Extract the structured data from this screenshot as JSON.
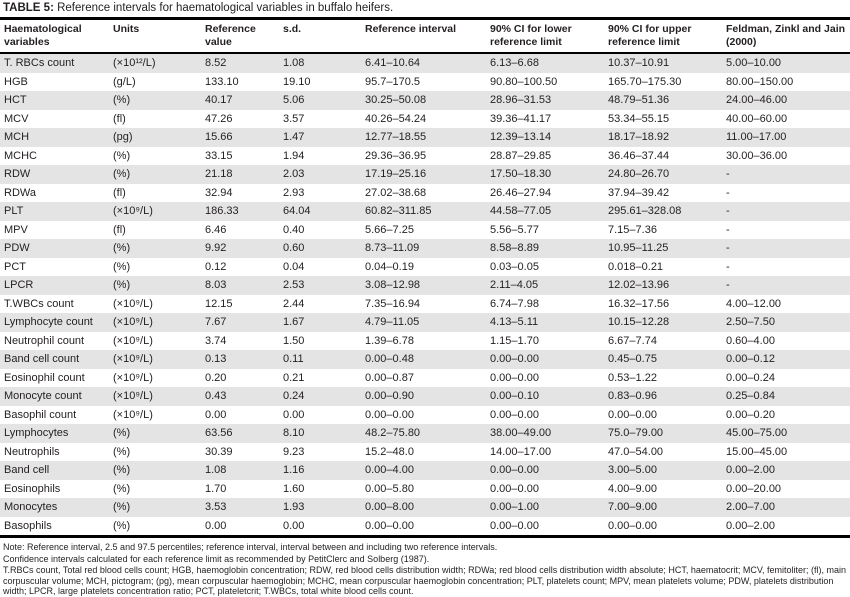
{
  "title": {
    "label": "TABLE 5:",
    "text": "Reference intervals for haematological variables in buffalo heifers."
  },
  "columns": [
    "Haematological variables",
    "Units",
    "Reference value",
    "s.d.",
    "Reference interval",
    "90% CI for lower reference limit",
    "90% CI for upper reference limit",
    "Feldman, Zinkl and Jain (2000)"
  ],
  "rows": [
    [
      "T. RBCs count",
      "(×10¹²/L)",
      "8.52",
      "1.08",
      "6.41–10.64",
      "6.13–6.68",
      "10.37–10.91",
      "5.00–10.00"
    ],
    [
      "HGB",
      "(g/L)",
      "133.10",
      "19.10",
      "95.7–170.5",
      "90.80–100.50",
      "165.70–175.30",
      "80.00–150.00"
    ],
    [
      "HCT",
      "(%)",
      "40.17",
      "5.06",
      "30.25–50.08",
      "28.96–31.53",
      "48.79–51.36",
      "24.00–46.00"
    ],
    [
      "MCV",
      "(fl)",
      "47.26",
      "3.57",
      "40.26–54.24",
      "39.36–41.17",
      "53.34–55.15",
      "40.00–60.00"
    ],
    [
      "MCH",
      "(pg)",
      "15.66",
      "1.47",
      "12.77–18.55",
      "12.39–13.14",
      "18.17–18.92",
      "11.00–17.00"
    ],
    [
      "MCHC",
      "(%)",
      "33.15",
      "1.94",
      "29.36–36.95",
      "28.87–29.85",
      "36.46–37.44",
      "30.00–36.00"
    ],
    [
      "RDW",
      "(%)",
      "21.18",
      "2.03",
      "17.19–25.16",
      "17.50–18.30",
      "24.80–26.70",
      "-"
    ],
    [
      "RDWa",
      "(fl)",
      "32.94",
      "2.93",
      "27.02–38.68",
      "26.46–27.94",
      "37.94–39.42",
      "-"
    ],
    [
      "PLT",
      "(×10⁹/L)",
      "186.33",
      "64.04",
      "60.82–311.85",
      "44.58–77.05",
      "295.61–328.08",
      "-"
    ],
    [
      "MPV",
      "(fl)",
      "6.46",
      "0.40",
      "5.66–7.25",
      "5.56–5.77",
      "7.15–7.36",
      "-"
    ],
    [
      "PDW",
      "(%)",
      "9.92",
      "0.60",
      "8.73–11.09",
      "8.58–8.89",
      "10.95–11.25",
      "-"
    ],
    [
      "PCT",
      "(%)",
      "0.12",
      "0.04",
      "0.04–0.19",
      "0.03–0.05",
      "0.018–0.21",
      "-"
    ],
    [
      "LPCR",
      "(%)",
      "8.03",
      "2.53",
      "3.08–12.98",
      "2.11–4.05",
      "12.02–13.96",
      "-"
    ],
    [
      "T.WBCs count",
      "(×10⁹/L)",
      "12.15",
      "2.44",
      "7.35–16.94",
      "6.74–7.98",
      "16.32–17.56",
      "4.00–12.00"
    ],
    [
      "Lymphocyte count",
      "(×10⁹/L)",
      "7.67",
      "1.67",
      "4.79–11.05",
      "4.13–5.11",
      "10.15–12.28",
      "2.50–7.50"
    ],
    [
      "Neutrophil count",
      "(×10⁹/L)",
      "3.74",
      "1.50",
      "1.39–6.78",
      "1.15–1.70",
      "6.67–7.74",
      "0.60–4.00"
    ],
    [
      "Band cell count",
      "(×10⁹/L)",
      "0.13",
      "0.11",
      "0.00–0.48",
      "0.00–0.00",
      "0.45–0.75",
      "0.00–0.12"
    ],
    [
      "Eosinophil count",
      "(×10⁹/L)",
      "0.20",
      "0.21",
      "0.00–0.87",
      "0.00–0.00",
      "0.53–1.22",
      "0.00–0.24"
    ],
    [
      "Monocyte count",
      "(×10⁹/L)",
      "0.43",
      "0.24",
      "0.00–0.90",
      "0.00–0.10",
      "0.83–0.96",
      "0.25–0.84"
    ],
    [
      "Basophil count",
      "(×10⁹/L)",
      "0.00",
      "0.00",
      "0.00–0.00",
      "0.00–0.00",
      "0.00–0.00",
      "0.00–0.20"
    ],
    [
      "Lymphocytes",
      "(%)",
      "63.56",
      "8.10",
      "48.2–75.80",
      "38.00–49.00",
      "75.0–79.00",
      "45.00–75.00"
    ],
    [
      "Neutrophils",
      "(%)",
      "30.39",
      "9.23",
      "15.2–48.0",
      "14.00–17.00",
      "47.0–54.00",
      "15.00–45.00"
    ],
    [
      "Band cell",
      "(%)",
      "1.08",
      "1.16",
      "0.00–4.00",
      "0.00–0.00",
      "3.00–5.00",
      "0.00–2.00"
    ],
    [
      "Eosinophils",
      "(%)",
      "1.70",
      "1.60",
      "0.00–5.80",
      "0.00–0.00",
      "4.00–9.00",
      "0.00–20.00"
    ],
    [
      "Monocytes",
      "(%)",
      "3.53",
      "1.93",
      "0.00–8.00",
      "0.00–1.00",
      "7.00–9.00",
      "2.00–7.00"
    ],
    [
      "Basophils",
      "(%)",
      "0.00",
      "0.00",
      "0.00–0.00",
      "0.00–0.00",
      "0.00–0.00",
      "0.00–2.00"
    ]
  ],
  "notes": [
    "Note: Reference interval, 2.5 and 97.5 percentiles; reference interval, interval between and including two reference intervals.",
    "Confidence intervals calculated for each reference limit as recommended by PetitClerc and Solberg (1987).",
    "T.RBCs count, Total red blood cells count; HGB, haemoglobin concentration; RDW, red blood cells distribution width; RDWa; red blood cells distribution width absolute; HCT, haematocrit; MCV, femitoliter; (fl), main corpuscular volume; MCH, pictogram; (pg), mean corpuscular haemoglobin; MCHC, mean corpuscular haemoglobin concentration; PLT, platelets count; MPV, mean platelets volume; PDW, platelets distribution width; LPCR, large platelets concentration ratio; PCT, plateletcrit; T.WBCs, total white blood cells count."
  ],
  "colors": {
    "stripe": "#e4e4e4",
    "rule": "#000000",
    "text": "#231f20"
  }
}
